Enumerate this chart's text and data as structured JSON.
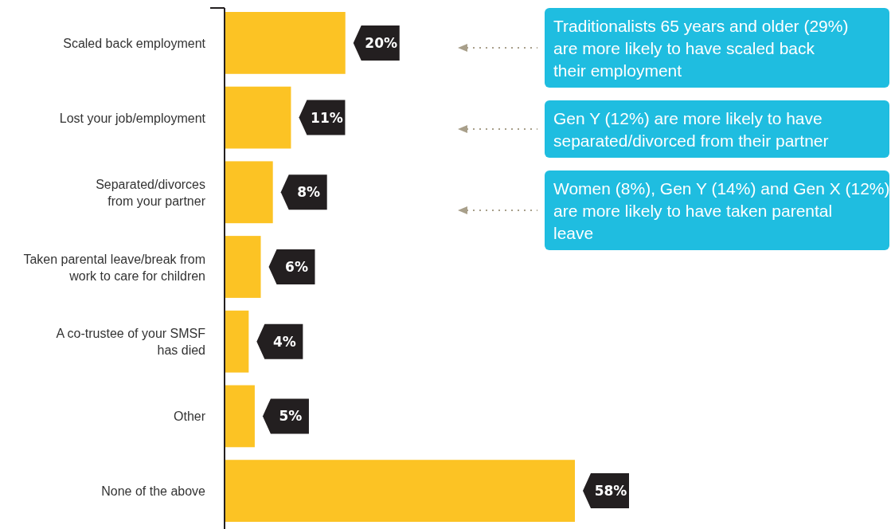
{
  "chart_data": {
    "type": "bar",
    "orientation": "horizontal",
    "categories": [
      "Scaled back employment",
      "Lost your job/employment",
      "Separated/divorces\nfrom your partner",
      "Taken parental leave/break from\nwork to care for children",
      "A co-trustee of your SMSF\nhas died",
      "Other",
      "None of the above"
    ],
    "values": [
      20,
      11,
      8,
      6,
      4,
      5,
      58
    ],
    "color": "#fcc324",
    "value_labels": [
      "20%",
      "11%",
      "8%",
      "6%",
      "4%",
      "5%",
      "58%"
    ],
    "annotations": [
      "Traditionalists 65 years and older (29%) are more likely to have scaled back their employment",
      "Gen Y (12%) are more likely to have separated/divorced from their partner",
      "Women (8%), Gen Y (14%) and Gen X (12%) are more likely to have taken parental leave"
    ]
  }
}
